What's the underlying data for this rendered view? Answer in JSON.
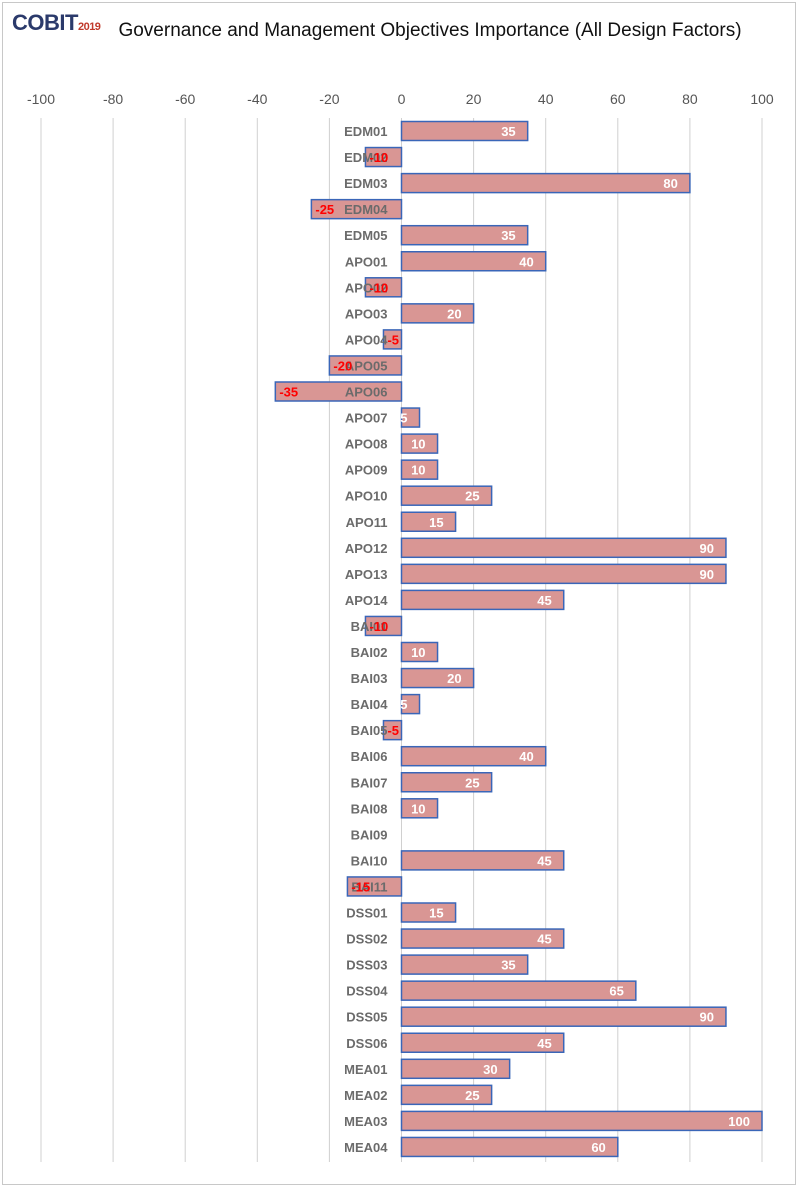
{
  "brand": {
    "main": "COBIT",
    "year": "2019"
  },
  "colors": {
    "bar_fill": "#d99694",
    "bar_stroke": "#3a66b8",
    "grid": "#d0d0d0",
    "pos_label": "#ffffff",
    "neg_label": "#ff0000"
  },
  "chart_data": {
    "type": "bar",
    "orientation": "horizontal",
    "title": "Governance and Management Objectives Importance (All Design Factors)",
    "xlim": [
      -100,
      100
    ],
    "xticks": [
      -100,
      -80,
      -60,
      -40,
      -20,
      0,
      20,
      40,
      60,
      80,
      100
    ],
    "grid": true,
    "categories": [
      "EDM01",
      "EDM02",
      "EDM03",
      "EDM04",
      "EDM05",
      "APO01",
      "APO02",
      "APO03",
      "APO04",
      "APO05",
      "APO06",
      "APO07",
      "APO08",
      "APO09",
      "APO10",
      "APO11",
      "APO12",
      "APO13",
      "APO14",
      "BAI01",
      "BAI02",
      "BAI03",
      "BAI04",
      "BAI05",
      "BAI06",
      "BAI07",
      "BAI08",
      "BAI09",
      "BAI10",
      "BAI11",
      "DSS01",
      "DSS02",
      "DSS03",
      "DSS04",
      "DSS05",
      "DSS06",
      "MEA01",
      "MEA02",
      "MEA03",
      "MEA04"
    ],
    "values": [
      35,
      -10,
      80,
      -25,
      35,
      40,
      -10,
      20,
      -5,
      -20,
      -35,
      5,
      10,
      10,
      25,
      15,
      90,
      90,
      45,
      -10,
      10,
      20,
      5,
      -5,
      40,
      25,
      10,
      0,
      45,
      -15,
      15,
      45,
      35,
      65,
      90,
      45,
      30,
      25,
      100,
      60
    ]
  }
}
